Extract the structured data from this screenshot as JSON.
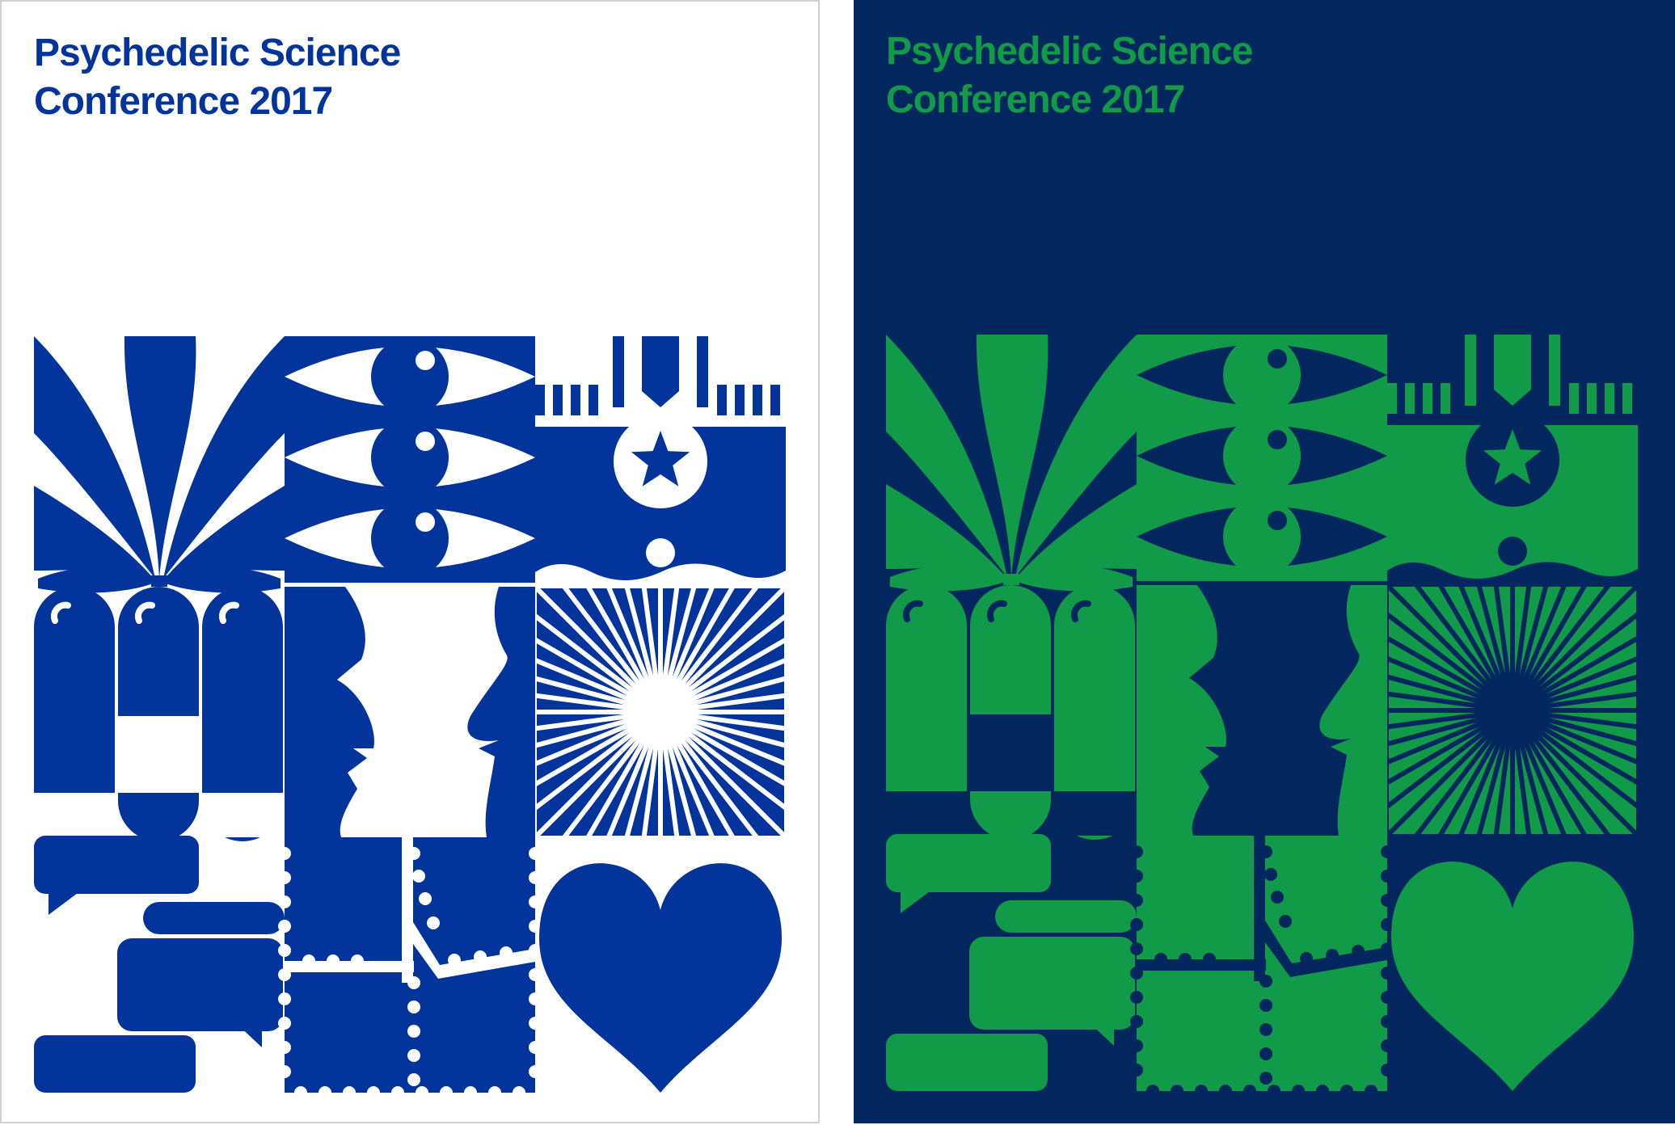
{
  "posters": [
    {
      "id": "light",
      "title_line1": "Psychedelic Science",
      "title_line2": "Conference 2017",
      "colors": {
        "background": "#ffffff",
        "ink": "#02349b",
        "cutout": "#ffffff"
      }
    },
    {
      "id": "dark",
      "title_line1": "Psychedelic Science",
      "title_line2": "Conference 2017",
      "colors": {
        "background": "#02275f",
        "ink": "#119a47",
        "cutout": "#02275f"
      }
    }
  ],
  "art_tiles": [
    "cannabis-leaf-icon",
    "three-eyes-icon",
    "medal-star-icon",
    "capsules-icon",
    "faces-profile-icon",
    "sunburst-icon",
    "speech-bubbles-icon",
    "stamp-sheet-icon",
    "heart-icon"
  ]
}
